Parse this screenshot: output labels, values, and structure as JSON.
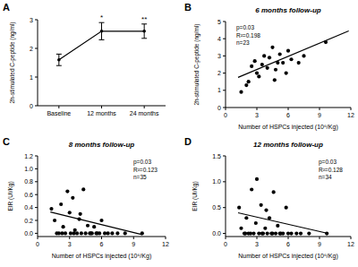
{
  "chart_data": [
    {
      "panel": "A",
      "type": "line",
      "y_label": "2h-stimulated C-peptide (ng/ml)",
      "categories": [
        "Baseline",
        "12 months",
        "24 months"
      ],
      "series": [
        {
          "type": "line",
          "color": "#000000",
          "marker": "circle",
          "line_style": "solid",
          "values": [
            1.6,
            2.6,
            2.6
          ],
          "errors": [
            0.2,
            0.3,
            0.25
          ]
        }
      ],
      "significance": [
        null,
        "*",
        "**"
      ],
      "ylim": [
        0,
        3
      ],
      "yticks": [
        0,
        1,
        2,
        3
      ],
      "grid": false
    },
    {
      "panel": "B",
      "type": "scatter",
      "title": "6 months follow-up",
      "x_label": "Number of HSPCs injected (10⁶/Kg)",
      "y_label": "2h-stimulated C-peptide (ng/ml)",
      "annotations": [
        "p=0.03",
        "R²=0.198",
        "n=23"
      ],
      "series": [
        {
          "type": "scatter",
          "color": "#000000",
          "marker": "circle",
          "x": [
            1.5,
            2,
            2.2,
            2.5,
            2.8,
            3,
            3.2,
            3.5,
            3.7,
            4,
            4.2,
            4.5,
            4.8,
            5,
            5.2,
            5.5,
            5.8,
            6,
            6.3,
            7,
            7.5,
            4.7,
            9.6
          ],
          "values": [
            0.9,
            1.3,
            1.5,
            2.4,
            2.7,
            2.0,
            1.8,
            2.5,
            3.0,
            2.3,
            2.9,
            3.5,
            2.2,
            2.6,
            3.1,
            2.6,
            2.0,
            3.3,
            2.8,
            2.6,
            3.0,
            1.6,
            3.8
          ]
        },
        {
          "type": "line",
          "color": "#000000",
          "line_style": "solid",
          "x": [
            1.2,
            11.8
          ],
          "values": [
            1.75,
            4.45
          ]
        }
      ],
      "xlim": [
        0,
        12
      ],
      "xticks": [
        0,
        3,
        6,
        9,
        12
      ],
      "ylim": [
        0,
        5
      ],
      "yticks": [
        0,
        1,
        2,
        3,
        4,
        5
      ],
      "grid": false
    },
    {
      "panel": "C",
      "type": "scatter",
      "title": "8 months follow-up",
      "x_label": "Number of HSPCs injected (10⁶/Kg)",
      "y_label": "EIR (UI/Kg)",
      "annotations": [
        "p=0.03",
        "R²=0.123",
        "n=35"
      ],
      "series": [
        {
          "type": "scatter",
          "color": "#000000",
          "marker": "circle",
          "x": [
            1.3,
            1.6,
            2,
            2.2,
            2.4,
            2.6,
            2.8,
            3,
            3.1,
            3.3,
            3.5,
            3.7,
            3.9,
            4.1,
            4.3,
            4.5,
            4.7,
            4.9,
            5.1,
            5.3,
            5.5,
            5.8,
            6,
            6.3,
            6.6,
            7,
            7.5,
            2.3,
            1.8,
            3.4,
            4.0,
            5.0,
            5.6,
            8.2,
            9.8
          ],
          "values": [
            0.38,
            0.2,
            0.0,
            0.45,
            0.1,
            0.0,
            0.65,
            0.32,
            0.0,
            0.55,
            0.05,
            0.0,
            0.22,
            0.0,
            0.68,
            0.0,
            0.12,
            0.0,
            0.0,
            0.1,
            0.0,
            0.0,
            0.2,
            0.0,
            0.0,
            0.0,
            0.0,
            0.0,
            0.0,
            0.0,
            0.3,
            0.0,
            0.0,
            0.0,
            0.0
          ]
        },
        {
          "type": "line",
          "color": "#000000",
          "line_style": "solid",
          "x": [
            1.2,
            9.8
          ],
          "values": [
            0.33,
            -0.02
          ]
        }
      ],
      "xlim": [
        0,
        12
      ],
      "xticks": [
        0,
        3,
        6,
        9,
        12
      ],
      "ylim": [
        -0.05,
        1.2
      ],
      "yticks": [
        {
          "value": 0,
          "label": "0.0"
        },
        0.2,
        0.4,
        0.6,
        0.8,
        {
          "value": 1,
          "label": "1.0"
        },
        1.2
      ],
      "grid": false
    },
    {
      "panel": "D",
      "type": "scatter",
      "title": "12 months follow-up",
      "x_label": "Number of HSPCs injected (10⁶/Kg)",
      "y_label": "EIR (UI/Kg)",
      "annotations": [
        "p=0.03",
        "R²=0.128",
        "n=34"
      ],
      "series": [
        {
          "type": "scatter",
          "color": "#000000",
          "marker": "circle",
          "x": [
            1.3,
            1.5,
            1.8,
            2,
            2.2,
            2.5,
            2.7,
            2.9,
            3,
            3.2,
            3.4,
            3.6,
            3.8,
            4,
            4.2,
            4.4,
            4.6,
            4.8,
            5,
            5.2,
            5.5,
            5.8,
            6,
            6.3,
            6.8,
            7.2,
            2.4,
            3.5,
            4.5,
            5.3,
            1.9,
            3.9,
            8,
            9.7
          ],
          "values": [
            0.5,
            0.1,
            0.0,
            0.3,
            0.0,
            0.85,
            0.0,
            0.2,
            1.05,
            0.0,
            0.55,
            0.0,
            0.1,
            0.0,
            0.3,
            0.0,
            0.8,
            0.0,
            0.15,
            0.0,
            0.0,
            0.5,
            0.0,
            0.0,
            0.0,
            0.0,
            0.0,
            0.0,
            0.0,
            0.0,
            0.0,
            0.45,
            0.0,
            0.0
          ]
        },
        {
          "type": "line",
          "color": "#000000",
          "line_style": "solid",
          "x": [
            1.2,
            9.8
          ],
          "values": [
            0.4,
            0.0
          ]
        }
      ],
      "xlim": [
        0,
        12
      ],
      "xticks": [
        0,
        3,
        6,
        9,
        12
      ],
      "ylim": [
        -0.06,
        1.5
      ],
      "yticks": [
        {
          "value": 0,
          "label": "0.0"
        },
        0.5,
        {
          "value": 1,
          "label": "1.0"
        },
        1.5
      ],
      "grid": false
    }
  ]
}
